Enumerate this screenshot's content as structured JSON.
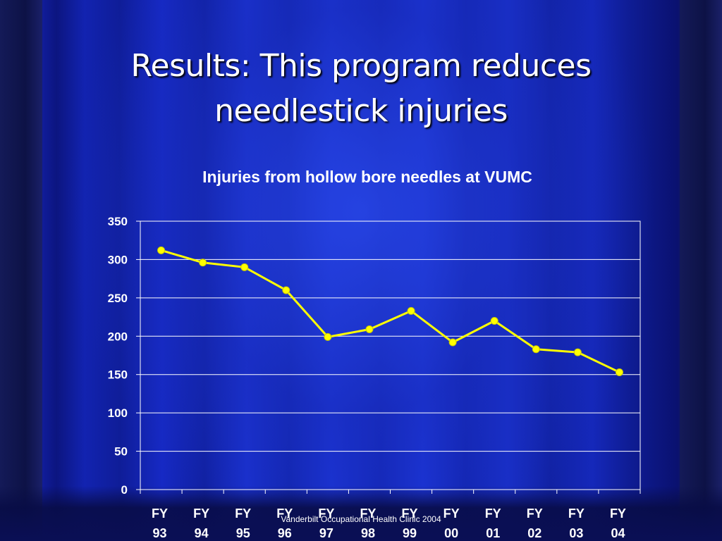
{
  "slide": {
    "title_line1": "Results:  This program reduces",
    "title_line2": "needlestick injuries",
    "footer": "Vanderbilt Occupational Health Clinic 2004"
  },
  "colors": {
    "line": "#ffff00",
    "marker": "#ffff00",
    "gridline": "#ffffff",
    "text": "#ffffff"
  },
  "chart_data": {
    "type": "line",
    "title": "Injuries from hollow bore needles at VUMC",
    "xlabel": "",
    "ylabel": "",
    "categories": [
      [
        "FY",
        "93"
      ],
      [
        "FY",
        "94"
      ],
      [
        "FY",
        "95"
      ],
      [
        "FY",
        "96"
      ],
      [
        "FY",
        "97"
      ],
      [
        "FY",
        "98"
      ],
      [
        "FY",
        "99"
      ],
      [
        "FY",
        "00"
      ],
      [
        "FY",
        "01"
      ],
      [
        "FY",
        "02"
      ],
      [
        "FY",
        "03"
      ],
      [
        "FY",
        "04"
      ]
    ],
    "values": [
      312,
      296,
      290,
      260,
      199,
      209,
      233,
      192,
      220,
      183,
      179,
      153
    ],
    "ylim": [
      0,
      350
    ],
    "yticks": [
      0,
      50,
      100,
      150,
      200,
      250,
      300,
      350
    ],
    "grid": true,
    "legend": "none"
  }
}
